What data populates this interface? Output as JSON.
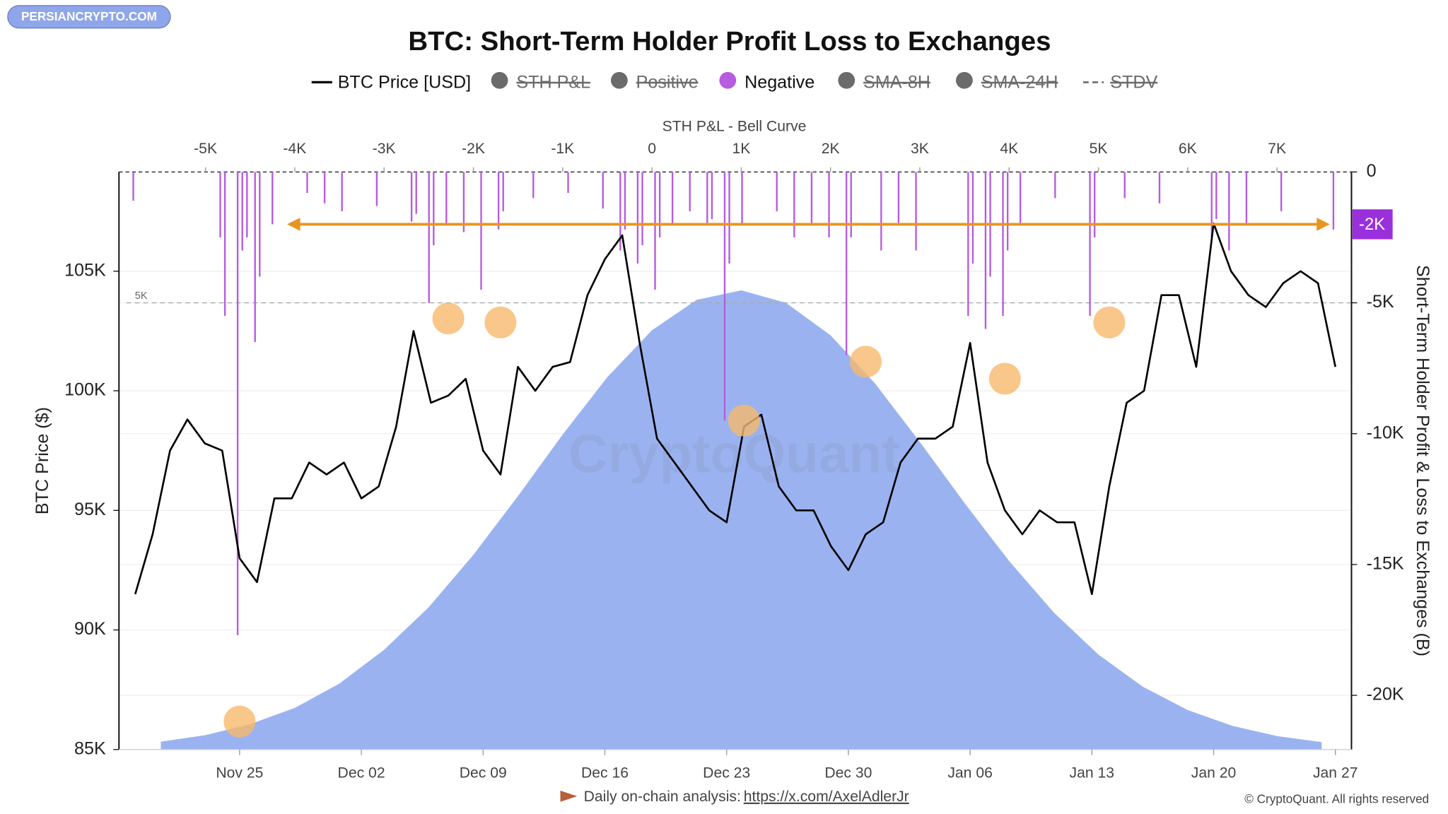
{
  "chart_data": {
    "type": "line",
    "title": "BTC: Short-Term Holder Profit Loss to Exchanges",
    "logo": "PERSIANCRYPTO.COM",
    "watermark": "CryptoQuant",
    "y_label": "BTC Price ($)",
    "y2_label": "Short-Term Holder Profit & Loss to Exchanges (B)",
    "footer": {
      "text": "Daily on-chain analysis:",
      "link": "https://x.com/AxelAdlerJr",
      "copyright": "© CryptoQuant. All rights reserved"
    },
    "legend": [
      {
        "name": "BTC Price [USD]",
        "color": "#000000",
        "style": "line",
        "hidden": false
      },
      {
        "name": "STH P&L",
        "color": "#6b6b6b",
        "style": "dot",
        "hidden": true
      },
      {
        "name": "Positive",
        "color": "#6b6b6b",
        "style": "dot",
        "hidden": true
      },
      {
        "name": "Negative",
        "color": "#b65ce0",
        "style": "dot",
        "hidden": false
      },
      {
        "name": "SMA-8H",
        "color": "#6b6b6b",
        "style": "dot",
        "hidden": true
      },
      {
        "name": "SMA-24H",
        "color": "#6b6b6b",
        "style": "dot",
        "hidden": true
      },
      {
        "name": "STDV",
        "color": "#6b6b6b",
        "style": "dash",
        "hidden": true
      }
    ],
    "x": [
      "Nov 19",
      "Nov 20",
      "Nov 21",
      "Nov 22",
      "Nov 23",
      "Nov 24",
      "Nov 25",
      "Nov 26",
      "Nov 27",
      "Nov 28",
      "Nov 29",
      "Nov 30",
      "Dec 01",
      "Dec 02",
      "Dec 03",
      "Dec 04",
      "Dec 05",
      "Dec 06",
      "Dec 07",
      "Dec 08",
      "Dec 09",
      "Dec 10",
      "Dec 11",
      "Dec 12",
      "Dec 13",
      "Dec 14",
      "Dec 15",
      "Dec 16",
      "Dec 17",
      "Dec 18",
      "Dec 19",
      "Dec 20",
      "Dec 21",
      "Dec 22",
      "Dec 23",
      "Dec 24",
      "Dec 25",
      "Dec 26",
      "Dec 27",
      "Dec 28",
      "Dec 29",
      "Dec 30",
      "Dec 31",
      "Jan 01",
      "Jan 02",
      "Jan 03",
      "Jan 04",
      "Jan 05",
      "Jan 06",
      "Jan 07",
      "Jan 08",
      "Jan 09",
      "Jan 10",
      "Jan 11",
      "Jan 12",
      "Jan 13",
      "Jan 14",
      "Jan 15",
      "Jan 16",
      "Jan 17",
      "Jan 18",
      "Jan 19",
      "Jan 20",
      "Jan 21",
      "Jan 22",
      "Jan 23",
      "Jan 24",
      "Jan 25",
      "Jan 26",
      "Jan 27"
    ],
    "xticks": [
      "Nov 25",
      "Dec 02",
      "Dec 09",
      "Dec 16",
      "Dec 23",
      "Dec 30",
      "Jan 06",
      "Jan 13",
      "Jan 20",
      "Jan 27"
    ],
    "ylim": [
      85000,
      109150
    ],
    "yticks": [
      {
        "value": 85000,
        "label": "85K"
      },
      {
        "value": 90000,
        "label": "90K"
      },
      {
        "value": 95000,
        "label": "95K"
      },
      {
        "value": 100000,
        "label": "100K"
      },
      {
        "value": 105000,
        "label": "105K"
      }
    ],
    "y2lim": [
      -22070,
      0
    ],
    "y2ticks": [
      0,
      {
        "value": -5000,
        "label": "-5K"
      },
      {
        "value": -10000,
        "label": "-10K"
      },
      {
        "value": -15000,
        "label": "-15K"
      },
      {
        "value": -20000,
        "label": "-20K"
      }
    ],
    "grid": true,
    "series": [
      {
        "name": "BTC Price [USD]",
        "color": "#000000",
        "values": [
          91500,
          94000,
          97500,
          98800,
          97800,
          97500,
          93000,
          92000,
          95500,
          95500,
          97000,
          96500,
          97000,
          95500,
          96000,
          98500,
          102500,
          99500,
          99800,
          100500,
          97500,
          96500,
          101000,
          100000,
          101000,
          101200,
          104000,
          105500,
          106500,
          102000,
          98000,
          97000,
          96000,
          95000,
          94500,
          98500,
          99000,
          96000,
          95000,
          95000,
          93500,
          92500,
          94000,
          94500,
          97000,
          98000,
          98000,
          98500,
          102000,
          97000,
          95000,
          94000,
          95000,
          94500,
          94500,
          91500,
          96000,
          99500,
          100000,
          104000,
          104000,
          101000,
          107000,
          105000,
          104000,
          103500,
          104500,
          105000,
          104500,
          101000
        ]
      }
    ],
    "bars": {
      "name": "Negative",
      "color": "#b65ce0",
      "axis": "y2",
      "x": [
        "Nov 19",
        "Nov 24",
        "Nov 24",
        "Nov 25",
        "Nov 25",
        "Nov 25",
        "Nov 26",
        "Nov 26",
        "Nov 27",
        "Nov 29",
        "Nov 30",
        "Dec 01",
        "Dec 03",
        "Dec 05",
        "Dec 05",
        "Dec 06",
        "Dec 06",
        "Dec 07",
        "Dec 08",
        "Dec 09",
        "Dec 10",
        "Dec 10",
        "Dec 12",
        "Dec 14",
        "Dec 16",
        "Dec 17",
        "Dec 17",
        "Dec 18",
        "Dec 18",
        "Dec 19",
        "Dec 19",
        "Dec 20",
        "Dec 21",
        "Dec 22",
        "Dec 22",
        "Dec 23",
        "Dec 23",
        "Dec 24",
        "Dec 26",
        "Dec 27",
        "Dec 28",
        "Dec 29",
        "Dec 30",
        "Dec 30",
        "Jan 01",
        "Jan 02",
        "Jan 03",
        "Jan 06",
        "Jan 06",
        "Jan 07",
        "Jan 07",
        "Jan 08",
        "Jan 08",
        "Jan 09",
        "Jan 11",
        "Jan 13",
        "Jan 13",
        "Jan 15",
        "Jan 17",
        "Jan 20",
        "Jan 20",
        "Jan 21",
        "Jan 22",
        "Jan 24",
        "Jan 27"
      ],
      "values": [
        -1100,
        -2500,
        -5500,
        -17700,
        -3000,
        -2500,
        -6500,
        -4000,
        -2000,
        -800,
        -1200,
        -1500,
        -1300,
        -1900,
        -1600,
        -5000,
        -2800,
        -2000,
        -2300,
        -4500,
        -2200,
        -1500,
        -1000,
        -800,
        -1400,
        -3000,
        -2200,
        -3500,
        -2800,
        -4500,
        -2500,
        -2000,
        -1500,
        -2000,
        -1800,
        -9500,
        -3500,
        -2000,
        -1500,
        -2500,
        -2000,
        -2500,
        -7000,
        -2500,
        -3000,
        -2000,
        -3000,
        -5500,
        -3500,
        -6000,
        -4000,
        -5500,
        -3000,
        -2000,
        -1000,
        -5500,
        -2500,
        -1000,
        -1200,
        -2500,
        -1800,
        -3000,
        -2000,
        -1500,
        -2200
      ]
    },
    "markers": {
      "color": "#f6b96b",
      "x": [
        "Nov 25",
        "Dec 07",
        "Dec 10",
        "Dec 24",
        "Dec 31",
        "Jan 08",
        "Jan 14"
      ],
      "values": [
        -21000,
        -5600,
        -5750,
        -9500,
        -7250,
        -7900,
        -5750
      ]
    },
    "bell_curve": {
      "title": "STH P&L - Bell Curve",
      "color": "#9ab3f0",
      "xlim": [
        -5885,
        7750
      ],
      "xticks": [
        {
          "value": -5000,
          "label": "-5K"
        },
        {
          "value": -4000,
          "label": "-4K"
        },
        {
          "value": -3000,
          "label": "-3K"
        },
        {
          "value": -2000,
          "label": "-2K"
        },
        {
          "value": -1000,
          "label": "-1K"
        },
        0,
        {
          "value": 1000,
          "label": "1K"
        },
        {
          "value": 2000,
          "label": "2K"
        },
        {
          "value": 3000,
          "label": "3K"
        },
        {
          "value": 4000,
          "label": "4K"
        },
        {
          "value": 5000,
          "label": "5K"
        },
        {
          "value": 6000,
          "label": "6K"
        },
        {
          "value": 7000,
          "label": "7K"
        }
      ],
      "x": [
        -5500,
        -5000,
        -4500,
        -4000,
        -3500,
        -3000,
        -2500,
        -2000,
        -1500,
        -1000,
        -500,
        0,
        500,
        1000,
        1500,
        2000,
        2500,
        3000,
        3500,
        4000,
        4500,
        5000,
        5500,
        6000,
        6500,
        7000,
        7500
      ],
      "values": [
        85330,
        85600,
        86060,
        86740,
        87760,
        89170,
        90950,
        93140,
        95600,
        98170,
        100570,
        102530,
        103800,
        104200,
        103680,
        102320,
        100300,
        97860,
        95310,
        92880,
        90730,
        88970,
        87620,
        86650,
        85990,
        85560,
        85310
      ]
    },
    "annotation": {
      "value": -2000,
      "label": "-2K",
      "from": "Nov 28",
      "to": "Jan 27",
      "color": "#e8951f"
    },
    "reference_line": {
      "value": -5000,
      "label": "5K"
    }
  }
}
